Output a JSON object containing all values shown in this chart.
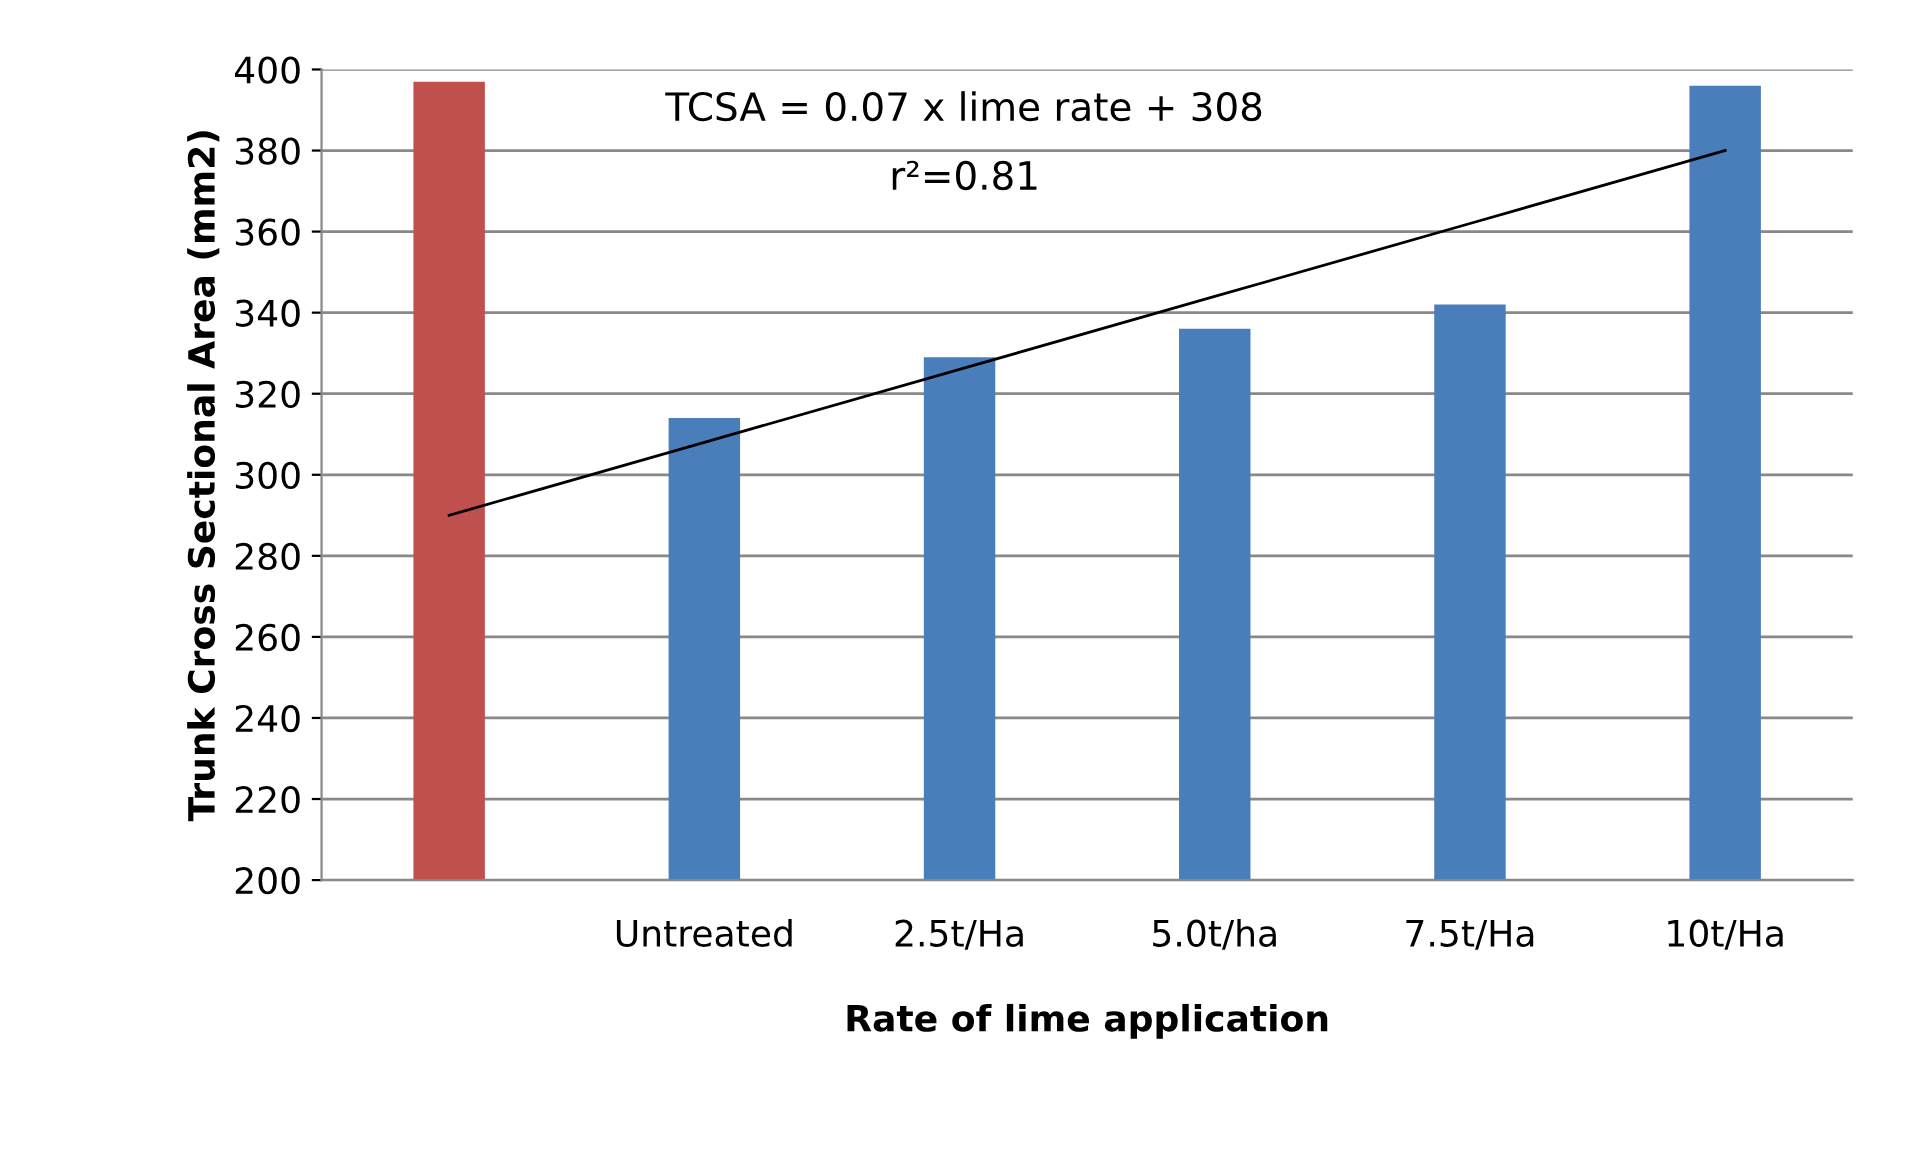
{
  "chart_data": {
    "type": "bar",
    "xlabel": "Rate of lime application",
    "ylabel": "Trunk Cross Sectional Area (mm2)",
    "categories": [
      null,
      "Untreated",
      "2.5t/Ha",
      "5.0t/ha",
      "7.5t/Ha",
      "10t/Ha"
    ],
    "series": [
      {
        "colors": [
          "#c0504d",
          "#4a7ebb",
          "#4a7ebb",
          "#4a7ebb",
          "#4a7ebb",
          "#4a7ebb"
        ],
        "values": [
          397,
          314,
          329,
          336,
          342,
          396
        ]
      },
      {
        "type": "line",
        "color": "#000000",
        "values": [
          290,
          308,
          326,
          344,
          362,
          380
        ]
      }
    ],
    "ylim": [
      200,
      400
    ],
    "yticks": [
      200,
      220,
      240,
      260,
      280,
      300,
      320,
      340,
      360,
      380,
      400
    ],
    "grid": "y",
    "annotations": [
      "TCSA = 0.07 x lime rate + 308",
      "r²=0.81"
    ]
  }
}
